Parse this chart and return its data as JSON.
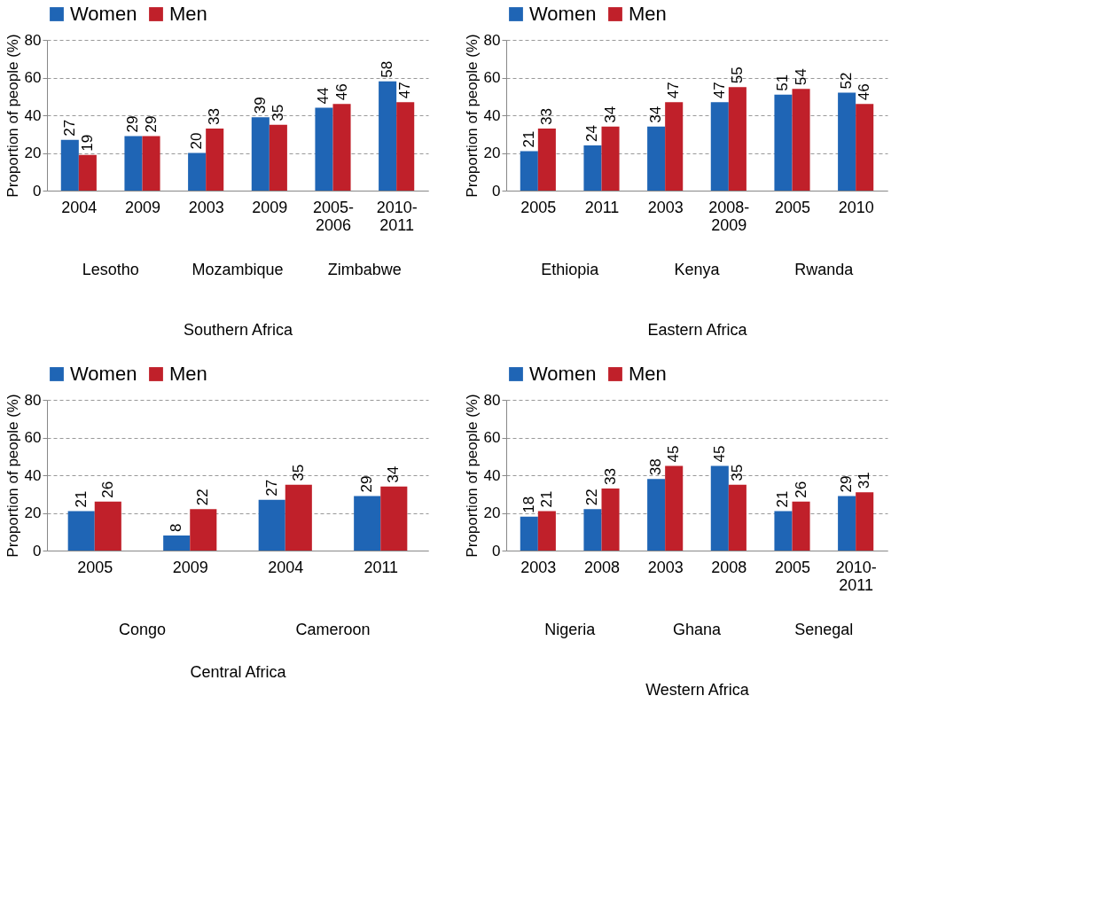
{
  "chart_data": [
    {
      "type": "bar",
      "categories": [
        "2004",
        "2009",
        "2003",
        "2009",
        "2005-2006",
        "2010-2011"
      ],
      "xlabel": "Southern Africa",
      "ylabel": "Proportion of people (%)",
      "annotations": [
        "Lesotho",
        "Mozambique",
        "Zimbabwe"
      ],
      "ylim": [
        0,
        80
      ],
      "yticks": [
        0,
        20,
        40,
        60,
        80
      ],
      "grid": "y",
      "legend": "top",
      "data_labels": true,
      "series": [
        {
          "name": "Women",
          "color": "#1f65b5",
          "values": [
            27,
            29,
            20,
            39,
            44,
            58
          ]
        },
        {
          "name": "Men",
          "color": "#c0202a",
          "values": [
            19,
            29,
            33,
            35,
            46,
            47
          ]
        }
      ]
    },
    {
      "type": "bar",
      "categories": [
        "2005",
        "2011",
        "2003",
        "2008-2009",
        "2005",
        "2010"
      ],
      "xlabel": "Eastern Africa",
      "ylabel": "Proportion of people (%)",
      "annotations": [
        "Ethiopia",
        "Kenya",
        "Rwanda"
      ],
      "ylim": [
        0,
        80
      ],
      "yticks": [
        0,
        20,
        40,
        60,
        80
      ],
      "grid": "y",
      "legend": "top",
      "data_labels": true,
      "series": [
        {
          "name": "Women",
          "color": "#1f65b5",
          "values": [
            21,
            24,
            34,
            47,
            51,
            52
          ]
        },
        {
          "name": "Men",
          "color": "#c0202a",
          "values": [
            33,
            34,
            47,
            55,
            54,
            46
          ]
        }
      ]
    },
    {
      "type": "bar",
      "categories": [
        "2005",
        "2009",
        "2004",
        "2011"
      ],
      "xlabel": "Central Africa",
      "ylabel": "Proportion of people (%)",
      "annotations": [
        "Congo",
        "Cameroon"
      ],
      "ylim": [
        0,
        80
      ],
      "yticks": [
        0,
        20,
        40,
        60,
        80
      ],
      "grid": "y",
      "legend": "top",
      "data_labels": true,
      "series": [
        {
          "name": "Women",
          "color": "#1f65b5",
          "values": [
            21,
            8,
            27,
            29
          ]
        },
        {
          "name": "Men",
          "color": "#c0202a",
          "values": [
            26,
            22,
            35,
            34
          ]
        }
      ]
    },
    {
      "type": "bar",
      "categories": [
        "2003",
        "2008",
        "2003",
        "2008",
        "2005",
        "2010-2011"
      ],
      "xlabel": "Western Africa",
      "ylabel": "Proportion of people (%)",
      "annotations": [
        "Nigeria",
        "Ghana",
        "Senegal"
      ],
      "ylim": [
        0,
        80
      ],
      "yticks": [
        0,
        20,
        40,
        60,
        80
      ],
      "grid": "y",
      "legend": "top",
      "data_labels": true,
      "series": [
        {
          "name": "Women",
          "color": "#1f65b5",
          "values": [
            18,
            22,
            38,
            45,
            21,
            29
          ]
        },
        {
          "name": "Men",
          "color": "#c0202a",
          "values": [
            21,
            33,
            45,
            35,
            26,
            31
          ]
        }
      ]
    }
  ]
}
